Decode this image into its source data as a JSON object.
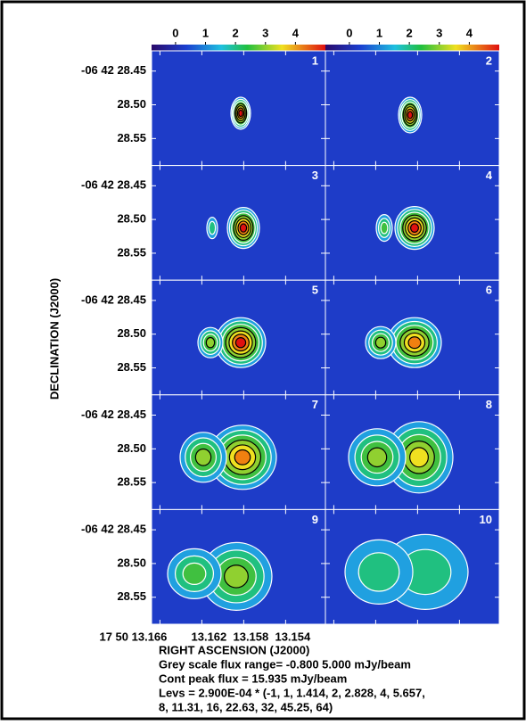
{
  "chart_data": {
    "type": "channel-maps",
    "panels": [
      "1",
      "2",
      "3",
      "4",
      "5",
      "6",
      "7",
      "8",
      "9",
      "10"
    ],
    "clim": [
      -0.8,
      5.0
    ],
    "colorbar_ticks": [
      0,
      1,
      2,
      3,
      4
    ],
    "xlim": [
      13.1668,
      13.1502
    ],
    "xticks": [
      {
        "value": 13.166,
        "label": "17 50 13.166"
      },
      {
        "value": 13.162,
        "label": "13.162"
      },
      {
        "value": 13.158,
        "label": "13.158"
      },
      {
        "value": 13.154,
        "label": "13.154"
      }
    ],
    "ylim": [
      28.42,
      28.59
    ],
    "yticks": [
      {
        "value": 28.45,
        "label": "-06 42 28.45"
      },
      {
        "value": 28.5,
        "label": "28.50"
      },
      {
        "value": 28.55,
        "label": "28.55"
      }
    ],
    "xlabel": "RIGHT ASCENSION (J2000)",
    "ylabel": "DECLINATION (J2000)",
    "notes": [
      "Grey scale flux range= -0.800 5.000 mJy/beam",
      "Cont peak flux =  15.935 mJy/beam",
      "Levs = 2.900E-04 * (-1, 1, 1.414, 2, 2.828, 4, 5.657,",
      "8, 11.31, 16, 22.63, 32, 45.25, 64)"
    ]
  }
}
